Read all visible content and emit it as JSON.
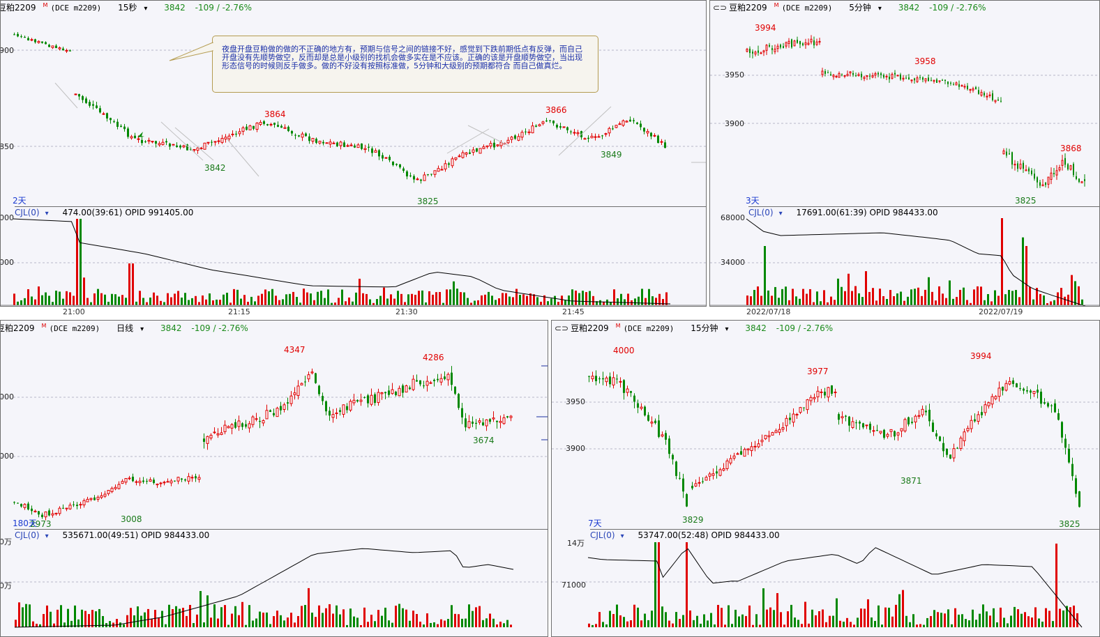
{
  "panels": {
    "top_left": {
      "name": "豆粕2209",
      "sup": "M",
      "code": "(DCE m2209)",
      "period": "15秒",
      "price": "3842",
      "change": "-109 / -2.76%",
      "indicator": "CJL(0)",
      "ind_values": "474.00(39:61)  OPID 991405.00",
      "price_labels": [
        {
          "text": "3864",
          "color": "red"
        },
        {
          "text": "3866",
          "color": "red"
        },
        {
          "text": "3842",
          "color": "green"
        },
        {
          "text": "3849",
          "color": "green"
        },
        {
          "text": "3825",
          "color": "green"
        }
      ],
      "y_axis": [
        "900",
        "850"
      ],
      "vol_axis": [
        "000",
        "000"
      ],
      "day_label": "2天",
      "time_axis": [
        "21:00",
        "21:15",
        "21:30",
        "21:45"
      ],
      "note": "夜盘开盘豆粕做的做的不正确的地方有，预期与信号之间的链接不好，感觉到下跌前期低点有反弹，而自己开盘没有先顺势做空，反而却是总是小级别的找机会做多实在是不应该。正确的该是开盘顺势做空，当出现形态信号的时候则反手做多。做的不好没有按照标准做，5分钟和大级别的预期都符合 而自己做真烂。"
    },
    "top_right": {
      "name": "豆粕2209",
      "sup": "M",
      "code": "(DCE m2209)",
      "period": "5分钟",
      "price": "3842",
      "change": "-109 / -2.76%",
      "indicator": "CJL(0)",
      "ind_values": "17691.00(61:39)  OPID 984433.00",
      "price_labels": [
        {
          "text": "3994",
          "color": "red"
        },
        {
          "text": "3958",
          "color": "red"
        },
        {
          "text": "3868",
          "color": "red"
        },
        {
          "text": "3825",
          "color": "green"
        }
      ],
      "y_axis": [
        "3950",
        "3900"
      ],
      "vol_axis": [
        "68000",
        "34000"
      ],
      "day_label": "3天",
      "time_axis": [
        "2022/07/18",
        "2022/07/19"
      ]
    },
    "bottom_left": {
      "name": "豆粕2209",
      "sup": "M",
      "code": "(DCE m2209)",
      "period": "日线",
      "price": "3842",
      "change": "-109 / -2.76%",
      "indicator": "CJL(0)",
      "ind_values": "535671.00(49:51)  OPID 984433.00",
      "price_labels": [
        {
          "text": "4347",
          "color": "red"
        },
        {
          "text": "4286",
          "color": "red"
        },
        {
          "text": "3674",
          "color": "green"
        },
        {
          "text": "3008",
          "color": "green"
        },
        {
          "text": "2973",
          "color": "green"
        }
      ],
      "y_axis": [
        "000",
        "000"
      ],
      "vol_axis": [
        "0万",
        "0万"
      ],
      "day_label": "180天"
    },
    "bottom_right": {
      "name": "豆粕2209",
      "sup": "M",
      "code": "(DCE m2209)",
      "period": "15分钟",
      "price": "3842",
      "change": "-109 / -2.76%",
      "indicator": "CJL(0)",
      "ind_values": "53747.00(52:48)  OPID 984433.00",
      "price_labels": [
        {
          "text": "4000",
          "color": "red"
        },
        {
          "text": "3977",
          "color": "red"
        },
        {
          "text": "3994",
          "color": "red"
        },
        {
          "text": "3829",
          "color": "green"
        },
        {
          "text": "3871",
          "color": "green"
        },
        {
          "text": "3825",
          "color": "green"
        }
      ],
      "y_axis": [
        "3950",
        "3900"
      ],
      "vol_axis": [
        "14万",
        "71000"
      ],
      "day_label": "7天"
    }
  },
  "colors": {
    "up": "#e00000",
    "down": "#008800",
    "background": "#f5f5fa",
    "note_text": "#1b2fa8",
    "indicator": "#2a45b8"
  },
  "icons": [
    "link-icon",
    "chevron-down-icon",
    "arrow-marker-icon"
  ]
}
